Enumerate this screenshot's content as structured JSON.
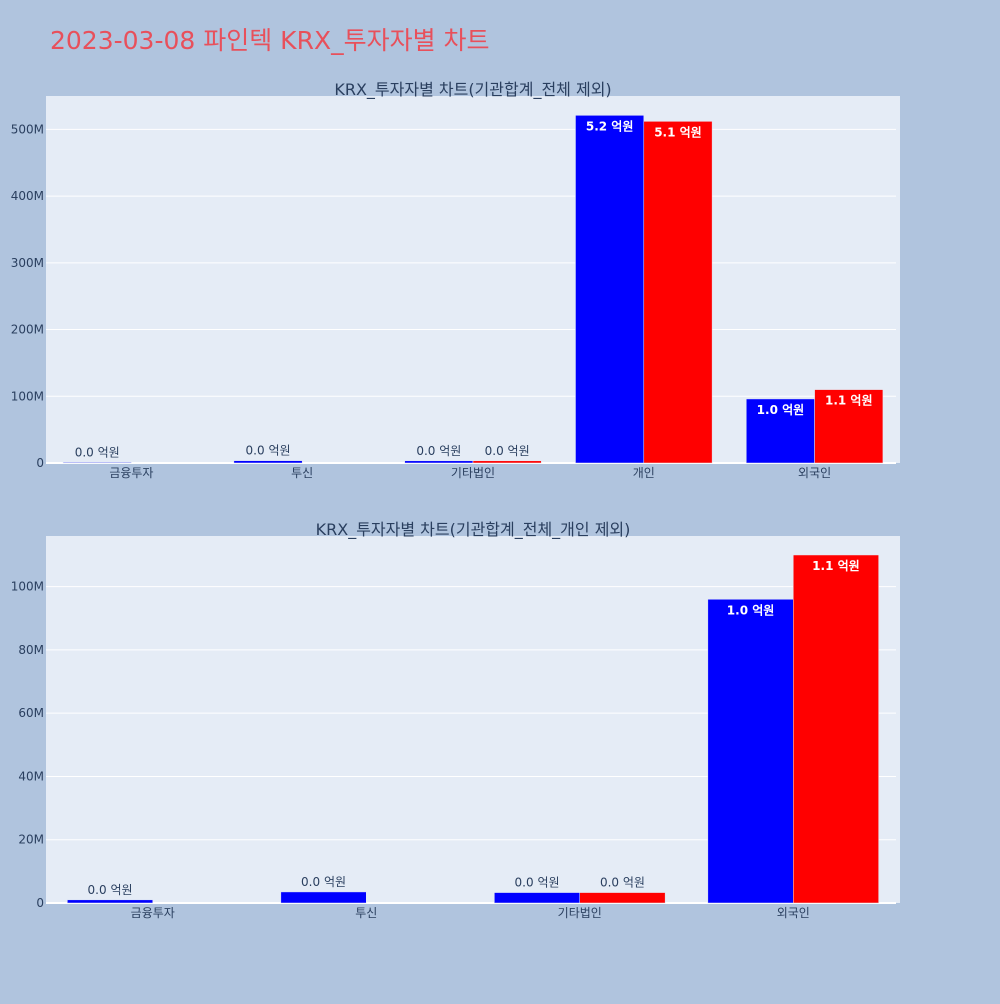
{
  "page": {
    "title": "2023-03-08 파인텍 KRX_투자자별 차트"
  },
  "colors": {
    "background": "#b0c4de",
    "plot_bg": "#e5ecf6",
    "grid": "#ffffff",
    "title": "#e8505b",
    "text": "#2a3f5f",
    "buy": "#0000ff",
    "sell": "#ff0000"
  },
  "chart_data": [
    {
      "type": "bar",
      "title": "KRX_투자자별 차트(기관합계_전체 제외)",
      "categories": [
        "금융투자",
        "투신",
        "기타법인",
        "개인",
        "외국인"
      ],
      "series": [
        {
          "color": "#0000ff",
          "values": [
            1000000,
            3500000,
            3300000,
            521000000,
            96000000
          ],
          "labels": [
            "0.0 억원",
            "0.0 억원",
            "0.0 억원",
            "5.2 억원",
            "1.0 억원"
          ]
        },
        {
          "color": "#ff0000",
          "values": [
            0,
            0,
            3300000,
            512000000,
            110000000
          ],
          "labels": [
            "",
            "",
            "0.0 억원",
            "5.1 억원",
            "1.1 억원"
          ]
        }
      ],
      "yticks": [
        0,
        100000000,
        200000000,
        300000000,
        400000000,
        500000000
      ],
      "ytick_labels": [
        "0",
        "100M",
        "200M",
        "300M",
        "400M",
        "500M"
      ],
      "ylim": [
        0,
        550000000
      ],
      "grid": true,
      "legend": "none"
    },
    {
      "type": "bar",
      "title": "KRX_투자자별 차트(기관합계_전체_개인 제외)",
      "categories": [
        "금융투자",
        "투신",
        "기타법인",
        "외국인"
      ],
      "series": [
        {
          "color": "#0000ff",
          "values": [
            1000000,
            3500000,
            3300000,
            96000000
          ],
          "labels": [
            "0.0 억원",
            "0.0 억원",
            "0.0 억원",
            "1.0 억원"
          ]
        },
        {
          "color": "#ff0000",
          "values": [
            0,
            0,
            3300000,
            110000000
          ],
          "labels": [
            "",
            "",
            "0.0 억원",
            "1.1 억원"
          ]
        }
      ],
      "yticks": [
        0,
        20000000,
        40000000,
        60000000,
        80000000,
        100000000
      ],
      "ytick_labels": [
        "0",
        "20M",
        "40M",
        "60M",
        "80M",
        "100M"
      ],
      "ylim": [
        0,
        116000000
      ],
      "grid": true,
      "legend": "none"
    }
  ]
}
